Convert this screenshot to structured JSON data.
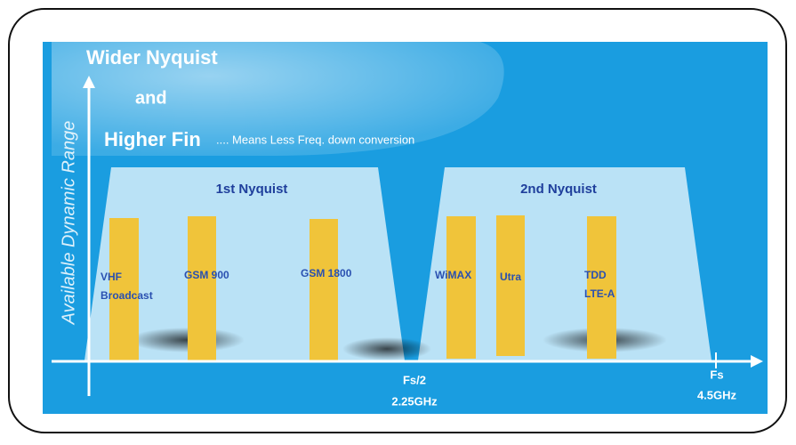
{
  "header": {
    "line1": "Wider Nyquist",
    "line2": "and",
    "line3": "Higher Fin",
    "note": ".... Means Less Freq. down conversion"
  },
  "y_axis_label": "Available Dynamic Range",
  "zones": [
    {
      "label": "1st Nyquist"
    },
    {
      "label": "2nd Nyquist"
    }
  ],
  "bands": [
    {
      "lines": [
        "VHF",
        "Broadcast"
      ]
    },
    {
      "lines": [
        "GSM 900"
      ]
    },
    {
      "lines": [
        "GSM 1800"
      ]
    },
    {
      "lines": [
        "WiMAX"
      ]
    },
    {
      "lines": [
        "Utra"
      ]
    },
    {
      "lines": [
        "TDD",
        "LTE-A"
      ]
    }
  ],
  "x_axis": {
    "mid_label": "Fs/2",
    "mid_freq": "2.25GHz",
    "end_label": "Fs",
    "end_freq": "4.5GHz"
  }
}
